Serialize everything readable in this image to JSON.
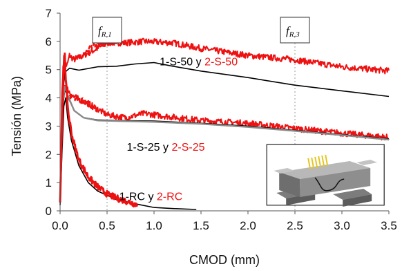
{
  "chart_data": {
    "type": "line",
    "xlabel": "CMOD (mm)",
    "ylabel": "Tensión (MPa)",
    "xlim": [
      0,
      3.5
    ],
    "ylim": [
      0,
      7
    ],
    "xticks": [
      "0.0",
      "0.5",
      "1.0",
      "1.5",
      "2.0",
      "2.5",
      "3.0",
      "3.5"
    ],
    "yticks": [
      "0",
      "1",
      "2",
      "3",
      "4",
      "5",
      "6",
      "7"
    ],
    "grid": false,
    "markers": [
      {
        "label_main": "f",
        "label_sub": "R,1",
        "x": 0.5
      },
      {
        "label_main": "f",
        "label_sub": "R,3",
        "x": 2.5
      }
    ],
    "annotations": [
      {
        "black": "1-S-50 y ",
        "red": "2-S-50",
        "x": 1.06,
        "y": 5.15
      },
      {
        "black": "1-S-25 y ",
        "red": "2-S-25",
        "x": 0.71,
        "y": 2.13
      },
      {
        "black": "1-RC y ",
        "red": "2-RC",
        "x": 0.63,
        "y": 0.38
      }
    ],
    "colors": {
      "black": "#000000",
      "red": "#ee1111",
      "gray": "#8a8a8a"
    },
    "series": [
      {
        "color": "#ee1111",
        "style": "noisy",
        "values": [
          [
            0,
            0.3
          ],
          [
            0.02,
            4.2
          ],
          [
            0.04,
            5.4
          ],
          [
            0.07,
            5.1
          ],
          [
            0.1,
            5.5
          ],
          [
            0.15,
            5.35
          ],
          [
            0.25,
            5.5
          ],
          [
            0.4,
            5.75
          ],
          [
            0.5,
            5.95
          ],
          [
            0.7,
            5.95
          ],
          [
            0.9,
            6.0
          ],
          [
            1.2,
            5.95
          ],
          [
            1.5,
            5.75
          ],
          [
            2.0,
            5.5
          ],
          [
            2.5,
            5.35
          ],
          [
            3.0,
            5.1
          ],
          [
            3.5,
            4.95
          ]
        ]
      },
      {
        "color": "#000000",
        "style": "solid",
        "values": [
          [
            0,
            0.3
          ],
          [
            0.02,
            3.8
          ],
          [
            0.05,
            4.9
          ],
          [
            0.1,
            5.05
          ],
          [
            0.2,
            4.98
          ],
          [
            0.4,
            5.1
          ],
          [
            0.6,
            5.12
          ],
          [
            0.8,
            5.2
          ],
          [
            1.0,
            5.25
          ],
          [
            1.2,
            5.12
          ],
          [
            1.5,
            4.95
          ],
          [
            2.0,
            4.72
          ],
          [
            2.5,
            4.45
          ],
          [
            3.0,
            4.25
          ],
          [
            3.5,
            4.05
          ]
        ]
      },
      {
        "color": "#ee1111",
        "style": "noisy",
        "values": [
          [
            0,
            0.3
          ],
          [
            0.02,
            3.5
          ],
          [
            0.05,
            4.45
          ],
          [
            0.08,
            4.3
          ],
          [
            0.12,
            4.1
          ],
          [
            0.2,
            3.95
          ],
          [
            0.3,
            3.8
          ],
          [
            0.5,
            3.4
          ],
          [
            0.7,
            3.3
          ],
          [
            0.9,
            3.45
          ],
          [
            1.0,
            3.4
          ],
          [
            1.5,
            3.2
          ],
          [
            2.0,
            3.1
          ],
          [
            2.5,
            2.92
          ],
          [
            3.0,
            2.75
          ],
          [
            3.5,
            2.6
          ]
        ]
      },
      {
        "color": "#000000",
        "style": "solid",
        "values": [
          [
            0,
            0.3
          ],
          [
            0.02,
            3.4
          ],
          [
            0.05,
            4.3
          ],
          [
            0.08,
            4.05
          ],
          [
            0.15,
            3.55
          ],
          [
            0.25,
            3.3
          ],
          [
            0.4,
            3.22
          ],
          [
            0.6,
            3.2
          ],
          [
            1.0,
            3.18
          ],
          [
            1.5,
            3.1
          ],
          [
            2.0,
            3.0
          ],
          [
            2.5,
            2.85
          ],
          [
            3.0,
            2.7
          ],
          [
            3.5,
            2.55
          ]
        ]
      },
      {
        "color": "#8a8a8a",
        "style": "solid",
        "values": [
          [
            0,
            0.3
          ],
          [
            0.02,
            3.6
          ],
          [
            0.05,
            4.4
          ],
          [
            0.08,
            4.1
          ],
          [
            0.15,
            3.55
          ],
          [
            0.25,
            3.3
          ],
          [
            0.4,
            3.2
          ],
          [
            0.6,
            3.18
          ],
          [
            1.0,
            3.15
          ],
          [
            1.5,
            3.08
          ],
          [
            2.0,
            2.97
          ],
          [
            2.5,
            2.83
          ],
          [
            3.0,
            2.68
          ],
          [
            3.5,
            2.52
          ]
        ]
      },
      {
        "color": "#ee1111",
        "style": "noisy-dashed",
        "values": [
          [
            0.15,
            5.35
          ],
          [
            0.25,
            5.5
          ],
          [
            0.35,
            5.85
          ],
          [
            0.5,
            5.95
          ],
          [
            0.6,
            5.97
          ]
        ]
      },
      {
        "color": "#ee1111",
        "style": "noisy-dashed",
        "values": [
          [
            0.1,
            4.05
          ],
          [
            0.2,
            3.95
          ],
          [
            0.3,
            3.8
          ],
          [
            0.4,
            3.6
          ]
        ]
      },
      {
        "color": "#000000",
        "style": "solid",
        "values": [
          [
            0,
            0.2
          ],
          [
            0.02,
            2.0
          ],
          [
            0.04,
            3.7
          ],
          [
            0.06,
            4.0
          ],
          [
            0.08,
            3.3
          ],
          [
            0.12,
            2.5
          ],
          [
            0.2,
            1.6
          ],
          [
            0.3,
            1.0
          ],
          [
            0.4,
            0.7
          ],
          [
            0.6,
            0.4
          ],
          [
            0.8,
            0.25
          ],
          [
            1.0,
            0.12
          ],
          [
            1.2,
            0.08
          ],
          [
            1.45,
            0.05
          ]
        ]
      },
      {
        "color": "#ee1111",
        "style": "noisy-thick",
        "values": [
          [
            0,
            0.3
          ],
          [
            0.02,
            3.0
          ],
          [
            0.035,
            5.0
          ],
          [
            0.05,
            5.6
          ],
          [
            0.06,
            4.6
          ],
          [
            0.09,
            3.4
          ],
          [
            0.13,
            2.6
          ],
          [
            0.2,
            1.8
          ],
          [
            0.3,
            1.2
          ],
          [
            0.4,
            0.85
          ],
          [
            0.5,
            0.6
          ],
          [
            0.6,
            0.45
          ],
          [
            0.7,
            0.35
          ],
          [
            0.82,
            0.22
          ]
        ]
      }
    ],
    "inset": {
      "kind": "photo",
      "x0": 2.2,
      "x1": 3.45,
      "y0": 0.2,
      "y1": 2.35
    }
  }
}
